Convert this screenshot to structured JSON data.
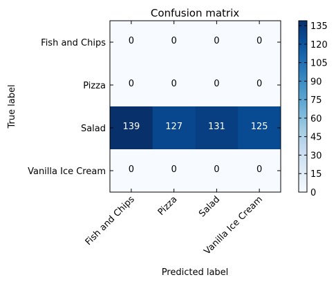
{
  "chart_data": {
    "type": "heatmap",
    "title": "Confusion matrix",
    "xlabel": "Predicted label",
    "ylabel": "True label",
    "rows": [
      "Fish and Chips",
      "Pizza",
      "Salad",
      "Vanilla Ice Cream"
    ],
    "cols": [
      "Fish and Chips",
      "Pizza",
      "Salad",
      "Vanilla Ice Cream"
    ],
    "values": [
      [
        0,
        0,
        0,
        0
      ],
      [
        0,
        0,
        0,
        0
      ],
      [
        139,
        127,
        131,
        125
      ],
      [
        0,
        0,
        0,
        0
      ]
    ],
    "colorbar": {
      "ticks": [
        0,
        15,
        30,
        45,
        60,
        75,
        90,
        105,
        120,
        135
      ],
      "range": [
        0,
        139
      ],
      "colormap": "Blues"
    },
    "colors": {
      "low": "#f7fbff",
      "high": "#08306b",
      "text_dark": "#000000",
      "text_light": "#ffffff"
    }
  }
}
